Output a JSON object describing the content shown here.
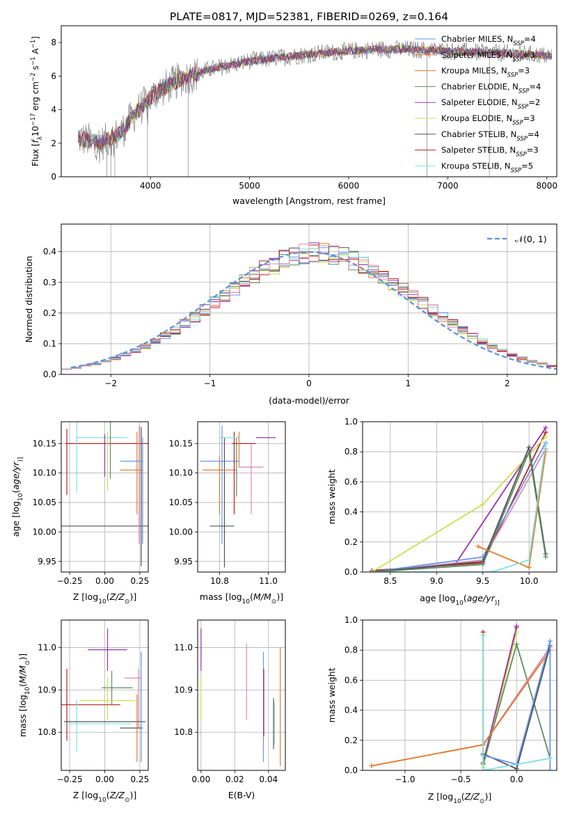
{
  "colors": {
    "gray": "#808080",
    "blue": "#6495ed",
    "orange": "#e07b2a",
    "green": "#5e8b62",
    "purple": "#9b30b0",
    "lime": "#c8e050",
    "dark": "#505050",
    "red": "#b22222",
    "cyan": "#80dfe0",
    "pink": "#e08ab0"
  },
  "chart_data": [
    {
      "id": "spectrum",
      "type": "line",
      "title": "PLATE=0817, MJD=52381, FIBERID=0269, z=0.164",
      "xlabel": "wavelength [Angstrom, rest frame]",
      "ylabel_parts": [
        "Flux [",
        "f",
        "λ",
        "10",
        "−17",
        " erg cm",
        "−2",
        " s",
        "−1",
        " A",
        "−1",
        "]"
      ],
      "xlim": [
        3100,
        8100
      ],
      "ylim": [
        0,
        9
      ],
      "xticks": [
        "4000",
        "5000",
        "6000",
        "7000",
        "8000"
      ],
      "yticks": [
        "0",
        "2",
        "4",
        "6",
        "8"
      ],
      "legend": [
        {
          "name": "Chabrier MILES, N",
          "sub": "SSP",
          "rest": "=4",
          "color": "blue"
        },
        {
          "name": "Salpeter MILES, N",
          "sub": "SSP",
          "rest": "=3",
          "color": "orange"
        },
        {
          "name": "Kroupa MILES, N",
          "sub": "SSP",
          "rest": "=3",
          "color": "orange"
        },
        {
          "name": "Chabrier ELODIE, N",
          "sub": "SSP",
          "rest": "=4",
          "color": "green"
        },
        {
          "name": "Salpeter ELODIE, N",
          "sub": "SSP",
          "rest": "=2",
          "color": "purple"
        },
        {
          "name": "Kroupa ELODIE, N",
          "sub": "SSP",
          "rest": "=3",
          "color": "lime"
        },
        {
          "name": "Chabrier STELIB, N",
          "sub": "SSP",
          "rest": "=4",
          "color": "dark"
        },
        {
          "name": "Salpeter STELIB, N",
          "sub": "SSP",
          "rest": "=3",
          "color": "red"
        },
        {
          "name": "Kroupa STELIB, N",
          "sub": "SSP",
          "rest": "=5",
          "color": "cyan"
        }
      ],
      "continuum": [
        [
          3270,
          2.3
        ],
        [
          3500,
          2.0
        ],
        [
          3700,
          2.6
        ],
        [
          3850,
          3.8
        ],
        [
          3950,
          4.4
        ],
        [
          4050,
          5.0
        ],
        [
          4300,
          5.8
        ],
        [
          4600,
          6.4
        ],
        [
          5000,
          6.9
        ],
        [
          5300,
          7.1
        ],
        [
          5600,
          7.3
        ],
        [
          6000,
          7.5
        ],
        [
          6300,
          7.6
        ],
        [
          6600,
          7.6
        ],
        [
          7000,
          7.5
        ],
        [
          7400,
          7.4
        ],
        [
          7800,
          7.3
        ],
        [
          8050,
          7.2
        ]
      ]
    },
    {
      "id": "residual_hist",
      "type": "line",
      "xlabel": "(data-model)/error",
      "ylabel": "Normed distribution",
      "xlim": [
        -2.5,
        2.5
      ],
      "ylim": [
        0,
        0.49
      ],
      "xticks": [
        "−2",
        "−1",
        "0",
        "1",
        "2"
      ],
      "yticks": [
        "0.0",
        "0.1",
        "0.2",
        "0.3",
        "0.4"
      ],
      "legend_label": "𝒩(0, 1)",
      "bin_width": 0.1,
      "hist_center": 0.1,
      "hist_sigma": 1.02
    },
    {
      "id": "age_vs_Z",
      "type": "scatter",
      "xlabel_parts": [
        "Z [log",
        "10",
        "(",
        "Z/Z",
        "⊙",
        ")]"
      ],
      "ylabel_parts": [
        "age  [log",
        "10",
        "(",
        "age/yr",
        ")]"
      ],
      "xlim": [
        -0.31,
        0.31
      ],
      "ylim": [
        9.932,
        10.187
      ],
      "xticks": [
        [
          "−0.25",
          -0.25
        ],
        [
          "0.00",
          0
        ],
        [
          "0.25",
          0.25
        ]
      ],
      "yticks": [
        [
          "9.95",
          9.95
        ],
        [
          "10.00",
          10.0
        ],
        [
          "10.05",
          10.05
        ],
        [
          "10.10",
          10.1
        ],
        [
          "10.15",
          10.15
        ]
      ],
      "points": [
        {
          "x": -0.27,
          "y": 10.15,
          "xerr": 0.0,
          "yerr": [
            0.087,
            0.025
          ],
          "color": "red"
        },
        {
          "x": 0.02,
          "y": 10.15,
          "xerr": 0.3,
          "yerr": 0.0,
          "color": "red"
        },
        {
          "x": -0.27,
          "y": 10.01,
          "xerr": 0.0,
          "yerr": 0.0,
          "color": "dark"
        },
        {
          "x": 0.0,
          "y": 10.01,
          "xerr": 0.42,
          "yerr": 0.0,
          "color": "dark"
        },
        {
          "x": -0.2,
          "y": 10.14,
          "xerr": 0.0,
          "yerr": 0.073,
          "color": "cyan"
        },
        {
          "x": -0.02,
          "y": 10.16,
          "xerr": 0.18,
          "yerr": 0.0,
          "color": "cyan"
        },
        {
          "x": 0.0,
          "y": 10.13,
          "xerr": 0.0,
          "yerr": 0.036,
          "color": "purple"
        },
        {
          "x": 0.02,
          "y": 10.12,
          "xerr": 0.0,
          "yerr": 0.05,
          "color": "lime"
        },
        {
          "x": 0.04,
          "y": 10.14,
          "xerr": 0.0,
          "yerr": 0.05,
          "color": "green"
        },
        {
          "x": 0.23,
          "y": 10.1,
          "xerr": 0.0,
          "yerr": 0.07,
          "color": "orange"
        },
        {
          "x": 0.19,
          "y": 10.105,
          "xerr": 0.08,
          "yerr": 0.0,
          "color": "orange"
        },
        {
          "x": 0.245,
          "y": 10.08,
          "xerr": 0.0,
          "yerr": 0.1,
          "color": "pink"
        },
        {
          "x": 0.26,
          "y": 10.06,
          "xerr": 0.0,
          "yerr": 0.118,
          "color": "dark"
        },
        {
          "x": 0.19,
          "y": 10.12,
          "xerr": 0.08,
          "yerr": 0.0,
          "color": "blue"
        },
        {
          "x": 0.27,
          "y": 10.07,
          "xerr": 0.0,
          "yerr": 0.09,
          "color": "blue"
        }
      ]
    },
    {
      "id": "age_vs_mass",
      "type": "scatter",
      "xlabel_parts": [
        "mass [log",
        "10",
        "(",
        "M/M",
        "⊙",
        ")]"
      ],
      "xlim": [
        10.71,
        11.07
      ],
      "ylim": [
        9.932,
        10.187
      ],
      "xticks": [
        [
          "10.8",
          10.8
        ],
        [
          "11.0",
          11.0
        ]
      ],
      "yticks": [
        [
          "9.95",
          9.95
        ],
        [
          "10.00",
          10.0
        ],
        [
          "10.05",
          10.05
        ],
        [
          "10.10",
          10.1
        ],
        [
          "10.15",
          10.15
        ]
      ],
      "points": [
        {
          "x": 10.81,
          "y": 10.08,
          "xerr": 0.0,
          "yerr": 0.1,
          "color": "blue"
        },
        {
          "x": 10.8,
          "y": 10.12,
          "xerr": 0.08,
          "yerr": 0.0,
          "color": "blue"
        },
        {
          "x": 10.81,
          "y": 10.01,
          "xerr": 0.05,
          "yerr": 0.0,
          "color": "dark"
        },
        {
          "x": 10.82,
          "y": 10.05,
          "xerr": 0.0,
          "yerr": 0.11,
          "color": "dark"
        },
        {
          "x": 10.8,
          "y": 10.08,
          "xerr": 0.0,
          "yerr": 0.05,
          "color": "orange"
        },
        {
          "x": 10.8,
          "y": 10.105,
          "xerr": 0.07,
          "yerr": 0.0,
          "color": "orange"
        },
        {
          "x": 10.86,
          "y": 10.1,
          "xerr": 0.0,
          "yerr": 0.07,
          "color": "red"
        },
        {
          "x": 10.9,
          "y": 10.15,
          "xerr": 0.05,
          "yerr": 0.0,
          "color": "red"
        },
        {
          "x": 10.87,
          "y": 10.11,
          "xerr": 0.0,
          "yerr": 0.05,
          "color": "green"
        },
        {
          "x": 10.84,
          "y": 10.16,
          "xerr": 0.04,
          "yerr": 0.0,
          "color": "cyan"
        },
        {
          "x": 10.99,
          "y": 10.16,
          "xerr": 0.04,
          "yerr": 0.0,
          "color": "purple"
        },
        {
          "x": 10.93,
          "y": 10.09,
          "xerr": 0.0,
          "yerr": 0.06,
          "color": "pink"
        },
        {
          "x": 10.93,
          "y": 10.11,
          "xerr": 0.05,
          "yerr": 0.0,
          "color": "pink"
        },
        {
          "x": 10.88,
          "y": 10.14,
          "xerr": 0.0,
          "yerr": 0.03,
          "color": "orange"
        }
      ]
    },
    {
      "id": "weight_vs_age",
      "type": "line",
      "xlabel_parts": [
        "age  [log",
        "10",
        "(",
        "age/yr",
        ")]"
      ],
      "ylabel": "mass weight",
      "xlim": [
        8.2,
        10.3
      ],
      "ylim": [
        0,
        1
      ],
      "xticks": [
        [
          "8.5",
          8.5
        ],
        [
          "9.0",
          9.0
        ],
        [
          "9.5",
          9.5
        ],
        [
          "10.0",
          10.0
        ]
      ],
      "yticks": [
        [
          "0.0",
          0
        ],
        [
          "0.2",
          0.2
        ],
        [
          "0.4",
          0.4
        ],
        [
          "0.6",
          0.6
        ],
        [
          "0.8",
          0.8
        ],
        [
          "1.0",
          1.0
        ]
      ],
      "series": [
        {
          "color": "purple",
          "x": [
            8.3,
            9.2,
            10.18
          ],
          "y": [
            0.0,
            0.05,
            0.96
          ]
        },
        {
          "color": "red",
          "x": [
            8.3,
            9.5,
            10.18
          ],
          "y": [
            0.01,
            0.06,
            0.93
          ]
        },
        {
          "color": "lime",
          "x": [
            8.3,
            9.5,
            10.18
          ],
          "y": [
            0.0,
            0.45,
            0.9
          ]
        },
        {
          "color": "pink",
          "x": [
            8.3,
            9.5,
            10.18
          ],
          "y": [
            0.0,
            0.08,
            0.82
          ]
        },
        {
          "color": "blue",
          "x": [
            8.3,
            9.5,
            10.18
          ],
          "y": [
            0.0,
            0.1,
            0.86
          ]
        },
        {
          "color": "dark",
          "x": [
            8.3,
            9.5,
            10.0,
            10.18
          ],
          "y": [
            0.0,
            0.07,
            0.83,
            0.12
          ]
        },
        {
          "color": "green",
          "x": [
            8.3,
            9.5,
            10.0,
            10.18
          ],
          "y": [
            0.0,
            0.05,
            0.8,
            0.1
          ]
        },
        {
          "color": "orange",
          "x": [
            9.45,
            10.0,
            10.18
          ],
          "y": [
            0.17,
            0.03,
            0.8
          ]
        },
        {
          "color": "cyan",
          "x": [
            8.3,
            9.6,
            10.0,
            10.18
          ],
          "y": [
            0.0,
            0.0,
            0.08,
            0.85
          ]
        }
      ]
    },
    {
      "id": "mass_vs_Z",
      "type": "scatter",
      "xlabel_parts": [
        "Z [log",
        "10",
        "(",
        "Z/Z",
        "⊙",
        ")]"
      ],
      "ylabel_parts": [
        "mass [log",
        "10",
        "(",
        "M/M",
        "⊙",
        ")]"
      ],
      "xlim": [
        -0.31,
        0.31
      ],
      "ylim": [
        10.71,
        11.065
      ],
      "xticks": [
        [
          "−0.25",
          -0.25
        ],
        [
          "0.00",
          0
        ],
        [
          "0.25",
          0.25
        ]
      ],
      "yticks": [
        [
          "10.8",
          10.8
        ],
        [
          "10.9",
          10.9
        ],
        [
          "11.0",
          11.0
        ]
      ],
      "points": [
        {
          "x": 0.02,
          "y": 10.995,
          "xerr": 0.14,
          "yerr": 0.05,
          "color": "purple"
        },
        {
          "x": 0.2,
          "y": 10.928,
          "xerr": 0.06,
          "yerr": 0.0,
          "color": "pink"
        },
        {
          "x": 0.24,
          "y": 10.88,
          "xerr": 0.0,
          "yerr": 0.07,
          "color": "pink"
        },
        {
          "x": 0.09,
          "y": 10.905,
          "xerr": 0.11,
          "yerr": 0.0,
          "color": "green"
        },
        {
          "x": 0.05,
          "y": 10.905,
          "xerr": 0.0,
          "yerr": 0.04,
          "color": "green"
        },
        {
          "x": 0.02,
          "y": 10.875,
          "xerr": 0.2,
          "yerr": 0.0,
          "color": "lime"
        },
        {
          "x": 0.02,
          "y": 10.88,
          "xerr": 0.0,
          "yerr": 0.05,
          "color": "lime"
        },
        {
          "x": -0.12,
          "y": 10.865,
          "xerr": 0.23,
          "yerr": 0.0,
          "color": "red"
        },
        {
          "x": -0.27,
          "y": 10.865,
          "xerr": 0.0,
          "yerr": 0.085,
          "color": "red"
        },
        {
          "x": -0.2,
          "y": 10.815,
          "xerr": 0.0,
          "yerr": 0.062,
          "color": "cyan"
        },
        {
          "x": -0.05,
          "y": 10.82,
          "xerr": 0.24,
          "yerr": 0.0,
          "color": "cyan"
        },
        {
          "x": 0.0,
          "y": 10.825,
          "xerr": 0.29,
          "yerr": 0.0,
          "color": "dark"
        },
        {
          "x": 0.19,
          "y": 10.81,
          "xerr": 0.08,
          "yerr": 0.0,
          "color": "dark"
        },
        {
          "x": 0.23,
          "y": 10.81,
          "xerr": 0.0,
          "yerr": 0.08,
          "color": "orange"
        },
        {
          "x": 0.26,
          "y": 10.86,
          "xerr": 0.0,
          "yerr": 0.13,
          "color": "blue"
        }
      ]
    },
    {
      "id": "mass_vs_ebv",
      "type": "scatter",
      "xlabel": "E(B-V)",
      "xlim": [
        -0.002,
        0.05
      ],
      "ylim": [
        10.71,
        11.065
      ],
      "xticks": [
        [
          "0.00",
          0
        ],
        [
          "0.02",
          0.02
        ],
        [
          "0.04",
          0.04
        ]
      ],
      "yticks": [
        [
          "10.8",
          10.8
        ],
        [
          "10.9",
          10.9
        ],
        [
          "11.0",
          11.0
        ]
      ],
      "points": [
        {
          "x": 0.0,
          "y": 10.995,
          "xerr": 0.0,
          "yerr": 0.05,
          "color": "purple"
        },
        {
          "x": 0.0,
          "y": 10.88,
          "xerr": 0.0,
          "yerr": 0.05,
          "color": "lime"
        },
        {
          "x": 0.027,
          "y": 10.92,
          "xerr": 0.0,
          "yerr": 0.09,
          "color": "pink"
        },
        {
          "x": 0.037,
          "y": 10.86,
          "xerr": 0.0,
          "yerr": 0.13,
          "color": "blue"
        },
        {
          "x": 0.0372,
          "y": 10.87,
          "xerr": 0.0,
          "yerr": 0.08,
          "color": "red"
        },
        {
          "x": 0.043,
          "y": 10.82,
          "xerr": 0.0,
          "yerr": 0.06,
          "color": "dark"
        },
        {
          "x": 0.0435,
          "y": 10.82,
          "xerr": 0.0,
          "yerr": 0.05,
          "color": "cyan"
        },
        {
          "x": 0.047,
          "y": 10.86,
          "xerr": 0.0,
          "yerr": 0.14,
          "color": "orange"
        }
      ]
    },
    {
      "id": "weight_vs_Z",
      "type": "line",
      "xlabel_parts": [
        "Z [log",
        "10",
        "(",
        "Z/Z",
        "⊙",
        ")]"
      ],
      "ylabel": "mass weight",
      "xlim": [
        -1.38,
        0.36
      ],
      "ylim": [
        0,
        1
      ],
      "xticks": [
        [
          "−1.0",
          -1.0
        ],
        [
          "−0.5",
          -0.5
        ],
        [
          "0.0",
          0
        ]
      ],
      "yticks": [
        [
          "0.0",
          0
        ],
        [
          "0.2",
          0.2
        ],
        [
          "0.4",
          0.4
        ],
        [
          "0.6",
          0.6
        ],
        [
          "0.8",
          0.8
        ],
        [
          "1.0",
          1.0
        ]
      ],
      "series": [
        {
          "color": "red",
          "x": [
            -0.3,
            -0.3,
            0.0
          ],
          "y": [
            0.92,
            0.05,
            0.95
          ]
        },
        {
          "color": "purple",
          "x": [
            -0.3,
            0.0
          ],
          "y": [
            0.05,
            0.96
          ]
        },
        {
          "color": "lime",
          "x": [
            -0.3,
            0.0
          ],
          "y": [
            0.02,
            0.92
          ]
        },
        {
          "color": "green",
          "x": [
            -0.3,
            0.0,
            0.3
          ],
          "y": [
            0.04,
            0.84,
            0.08
          ]
        },
        {
          "color": "pink",
          "x": [
            -1.3,
            -0.3,
            0.3
          ],
          "y": [
            0.03,
            0.17,
            0.82
          ]
        },
        {
          "color": "orange",
          "x": [
            -1.3,
            -0.3,
            0.3
          ],
          "y": [
            0.03,
            0.17,
            0.8
          ]
        },
        {
          "color": "dark",
          "x": [
            -0.3,
            0.0,
            0.3
          ],
          "y": [
            0.11,
            0.01,
            0.83
          ]
        },
        {
          "color": "blue",
          "x": [
            -0.3,
            0.0,
            0.3,
            0.3
          ],
          "y": [
            0.1,
            0.04,
            0.86,
            0.0
          ]
        },
        {
          "color": "cyan",
          "x": [
            -0.3,
            -0.3,
            0.3
          ],
          "y": [
            0.9,
            0.0,
            0.08
          ]
        }
      ]
    }
  ]
}
